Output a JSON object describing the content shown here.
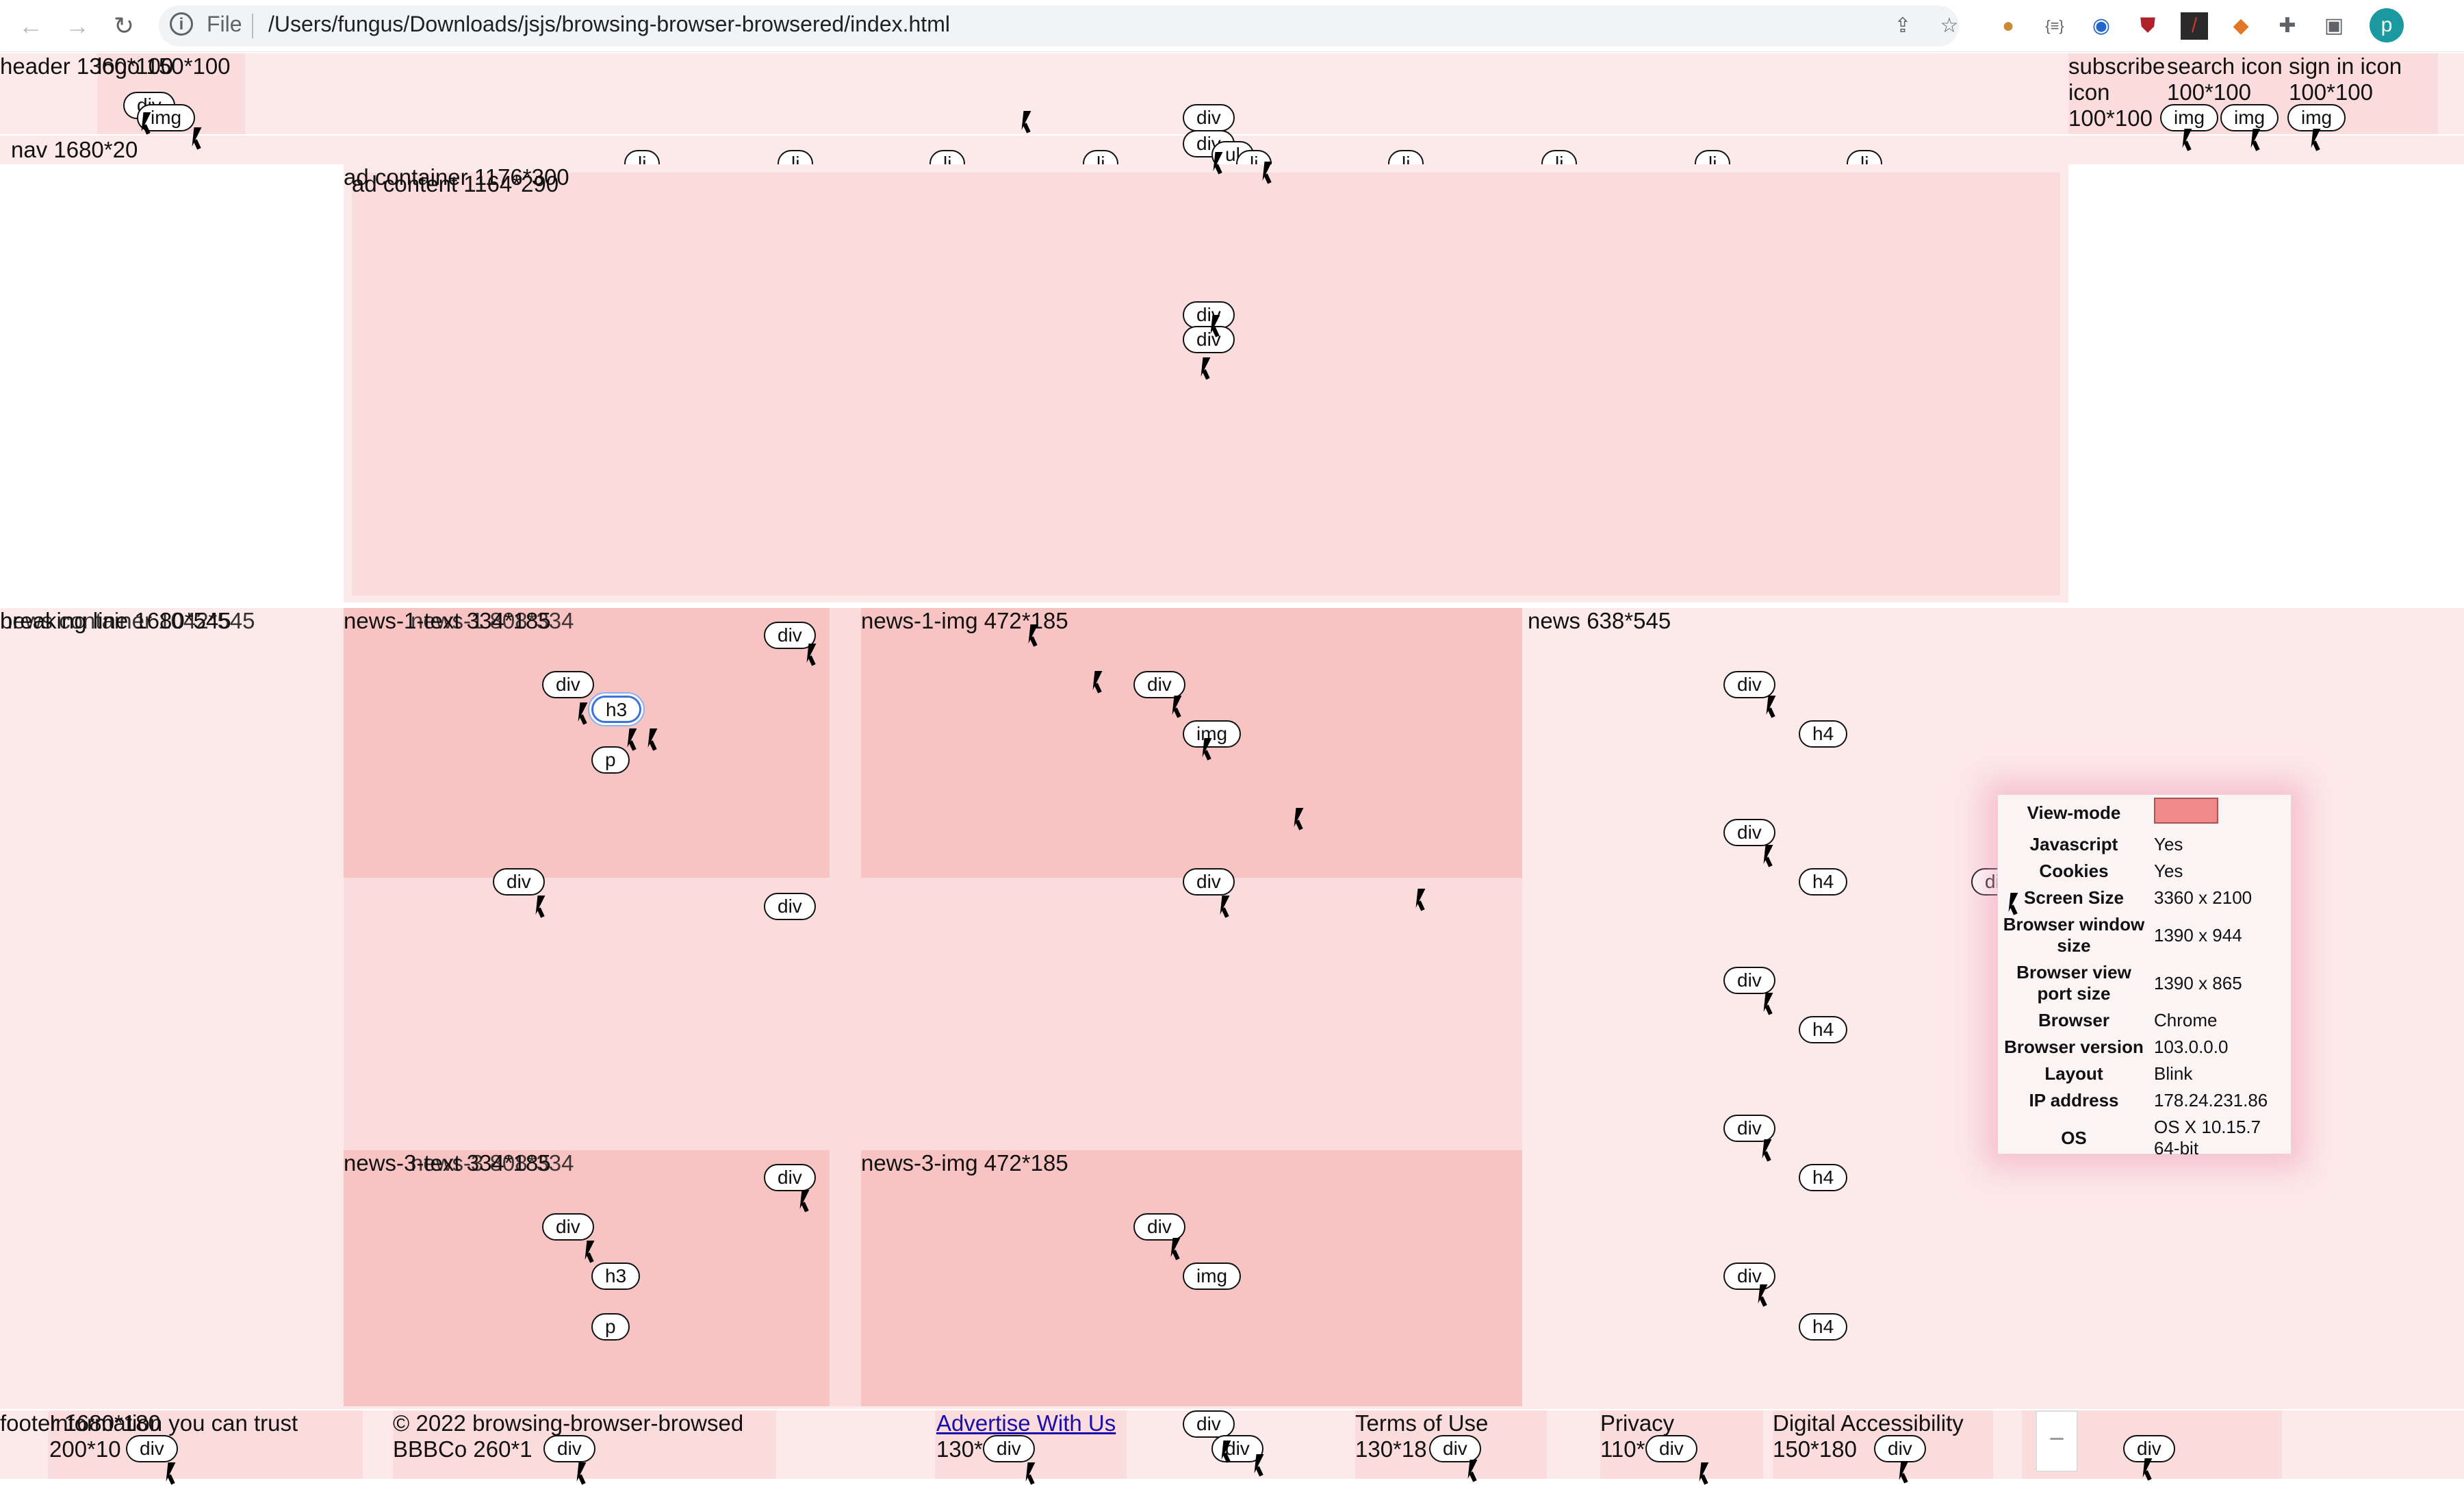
{
  "browser": {
    "file_label": "File",
    "url": "/Users/fungus/Downloads/jsjs/browsing-browser-browsered/index.html",
    "profile_initial": "p",
    "icons": [
      "back-icon",
      "forward-icon",
      "reload-icon",
      "info-icon",
      "share-icon",
      "star-icon",
      "cookie-icon",
      "json-icon",
      "extension-icon",
      "shield-icon",
      "bookmark-icon",
      "fox-icon",
      "puzzle-icon",
      "sidebar-icon"
    ]
  },
  "header": {
    "label": "header 1360*100",
    "logo_label": "logo 150*100",
    "subscribe_label": "subscribe icon 100*100",
    "search_label": "search icon 100*100",
    "signin_label": "sign in icon 100*100"
  },
  "nav": {
    "label": "nav 1680*20",
    "items": [
      "li",
      "li",
      "li",
      "li",
      "li",
      "li",
      "li",
      "li",
      "li"
    ]
  },
  "ad": {
    "container_label": "ad container 1176*300",
    "content_label": "ad content 1164*290"
  },
  "main": {
    "news_container_label": "news container 1042*545",
    "breaking_label": "breaking line 1680*545",
    "news1_text_label": "news-1-text 334*185",
    "news1_block_label": "news-1 808*334",
    "news1_img_label": "news-1-img 472*185",
    "news3_text_label": "news-3-text 334*185",
    "news3_block_label": "news-3 808*334",
    "news3_img_label": "news-3-img 472*185",
    "news_side_label": "news 638*545"
  },
  "tags": {
    "div": "div",
    "img": "img",
    "h3": "h3",
    "p": "p",
    "h4": "h4",
    "ul": "ul",
    "li": "li"
  },
  "footer": {
    "label": "footer 1680*180",
    "info_label": "Information you can trust",
    "info_size": "200*10",
    "copyright": "© 2022 browsing-browser-browsed BBBCo 260*1",
    "advertise_link": "Advertise With Us",
    "advertise_size": "130*",
    "terms": "Terms of Use",
    "terms_size": "130*18",
    "privacy": "Privacy",
    "privacy_size": "110*",
    "accessibility": "Digital Accessibility",
    "accessibility_size": "150*180"
  },
  "info_popup": {
    "rows": [
      {
        "key": "View-mode",
        "value": ""
      },
      {
        "key": "Javascript",
        "value": "Yes"
      },
      {
        "key": "Cookies",
        "value": "Yes"
      },
      {
        "key": "Screen Size",
        "value": "3360 x 2100"
      },
      {
        "key": "Browser window size",
        "value": "1390 x 944"
      },
      {
        "key": "Browser view port size",
        "value": "1390 x 865"
      },
      {
        "key": "Browser",
        "value": "Chrome"
      },
      {
        "key": "Browser version",
        "value": "103.0.0.0"
      },
      {
        "key": "Layout",
        "value": "Blink"
      },
      {
        "key": "IP address",
        "value": "178.24.231.86"
      },
      {
        "key": "OS",
        "value": "OS X 10.15.7 64-bit"
      }
    ],
    "swatch_color": "#f08a8a"
  },
  "colors": {
    "pink_light": "#fce9e9",
    "pink_mid": "#fbdcdc",
    "pink_dark": "#f7c3c3",
    "link": "#1a0dab"
  }
}
